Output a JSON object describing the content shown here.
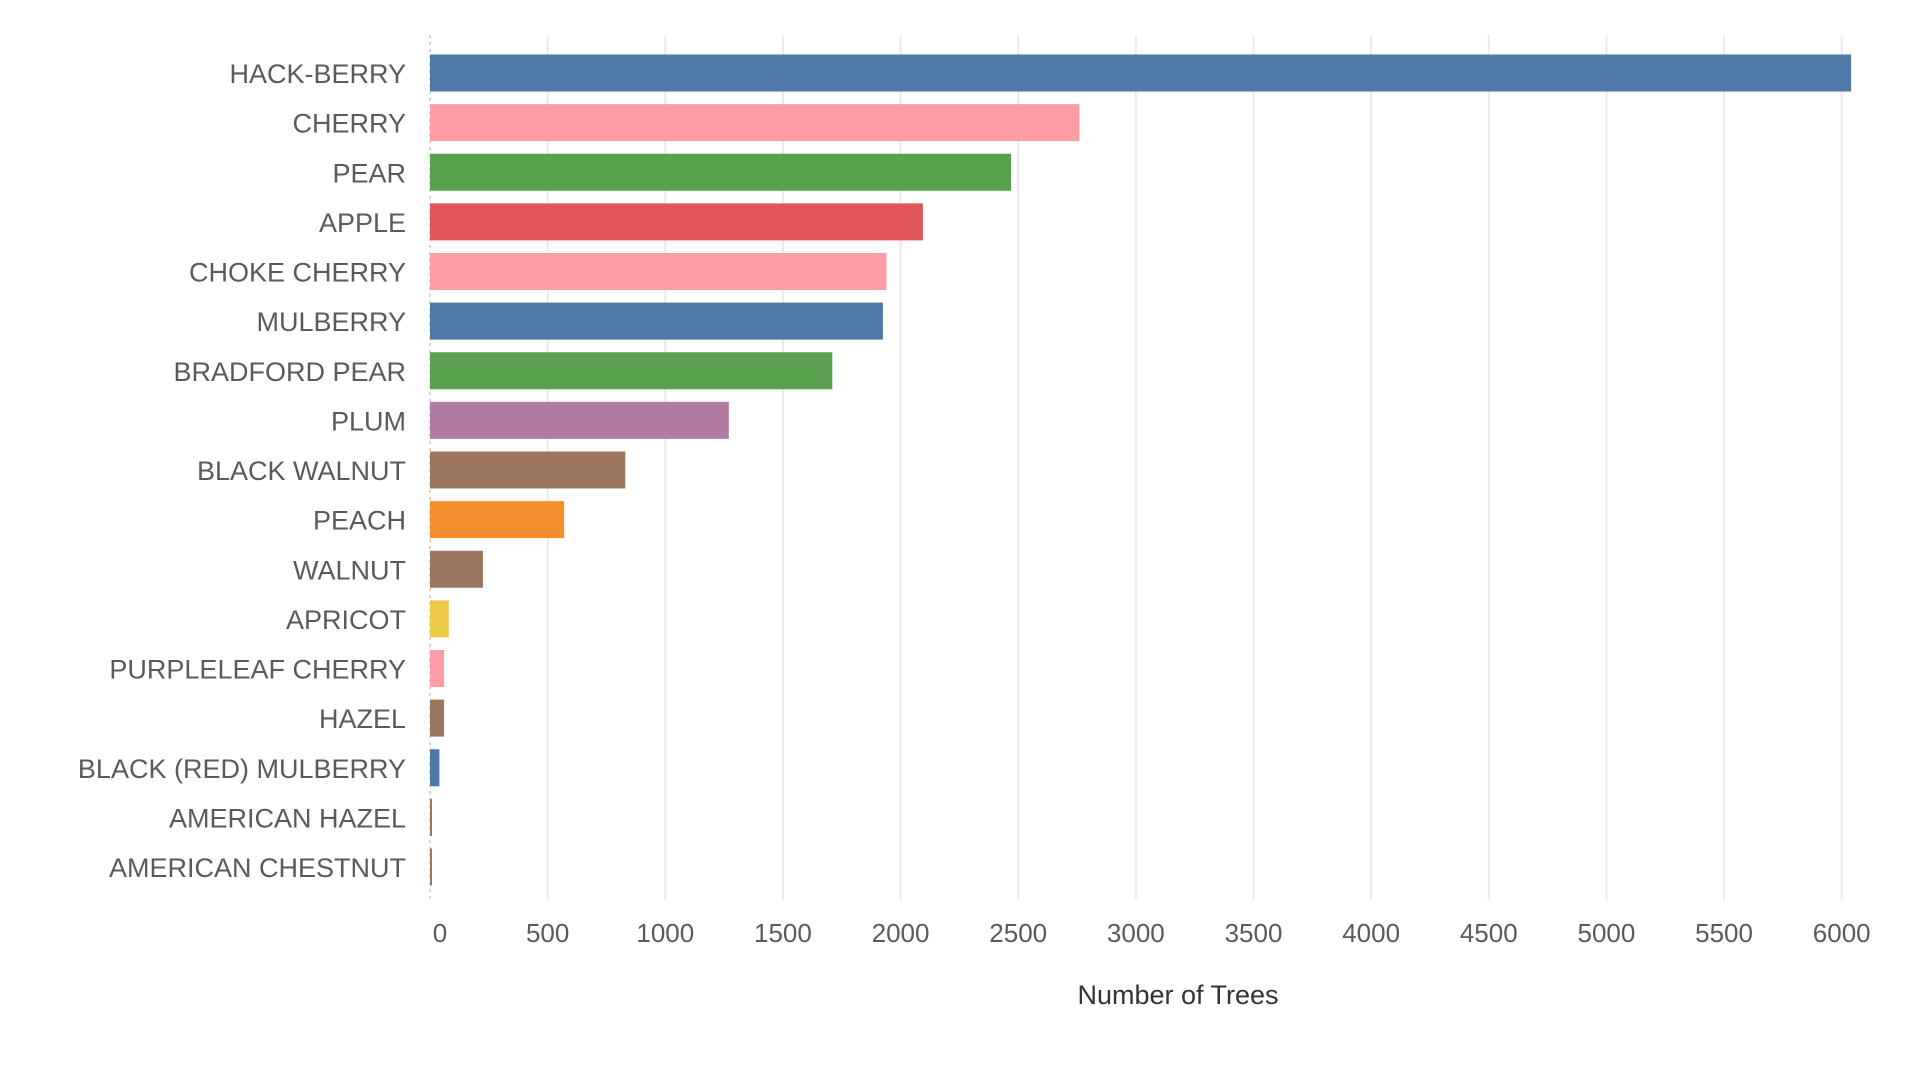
{
  "chart_data": {
    "type": "bar",
    "orientation": "horizontal",
    "title": "",
    "xlabel": "Number of Trees",
    "ylabel": "",
    "xlim": [
      0,
      6150
    ],
    "xticks": [
      0,
      500,
      1000,
      1500,
      2000,
      2500,
      3000,
      3500,
      4000,
      4500,
      5000,
      5500,
      6000
    ],
    "grid": "vertical",
    "legend": "none",
    "categories": [
      "HACK-BERRY",
      "CHERRY",
      "PEAR",
      "APPLE",
      "CHOKE CHERRY",
      "MULBERRY",
      "BRADFORD PEAR",
      "PLUM",
      "BLACK WALNUT",
      "PEACH",
      "WALNUT",
      "APRICOT",
      "PURPLELEAF CHERRY",
      "HAZEL",
      "BLACK (RED) MULBERRY",
      "AMERICAN HAZEL",
      "AMERICAN CHESTNUT"
    ],
    "values": [
      6040,
      2760,
      2470,
      2095,
      1940,
      1925,
      1710,
      1270,
      830,
      570,
      225,
      80,
      60,
      60,
      40,
      8,
      8
    ],
    "colors": [
      "#4e79a7",
      "#ff9da7",
      "#59a14f",
      "#e15759",
      "#ff9da7",
      "#4e79a7",
      "#59a14f",
      "#b07aa1",
      "#9c755f",
      "#f28e2b",
      "#9c755f",
      "#edc948",
      "#ff9da7",
      "#9c755f",
      "#4e79a7",
      "#9c755f",
      "#9c755f"
    ]
  }
}
